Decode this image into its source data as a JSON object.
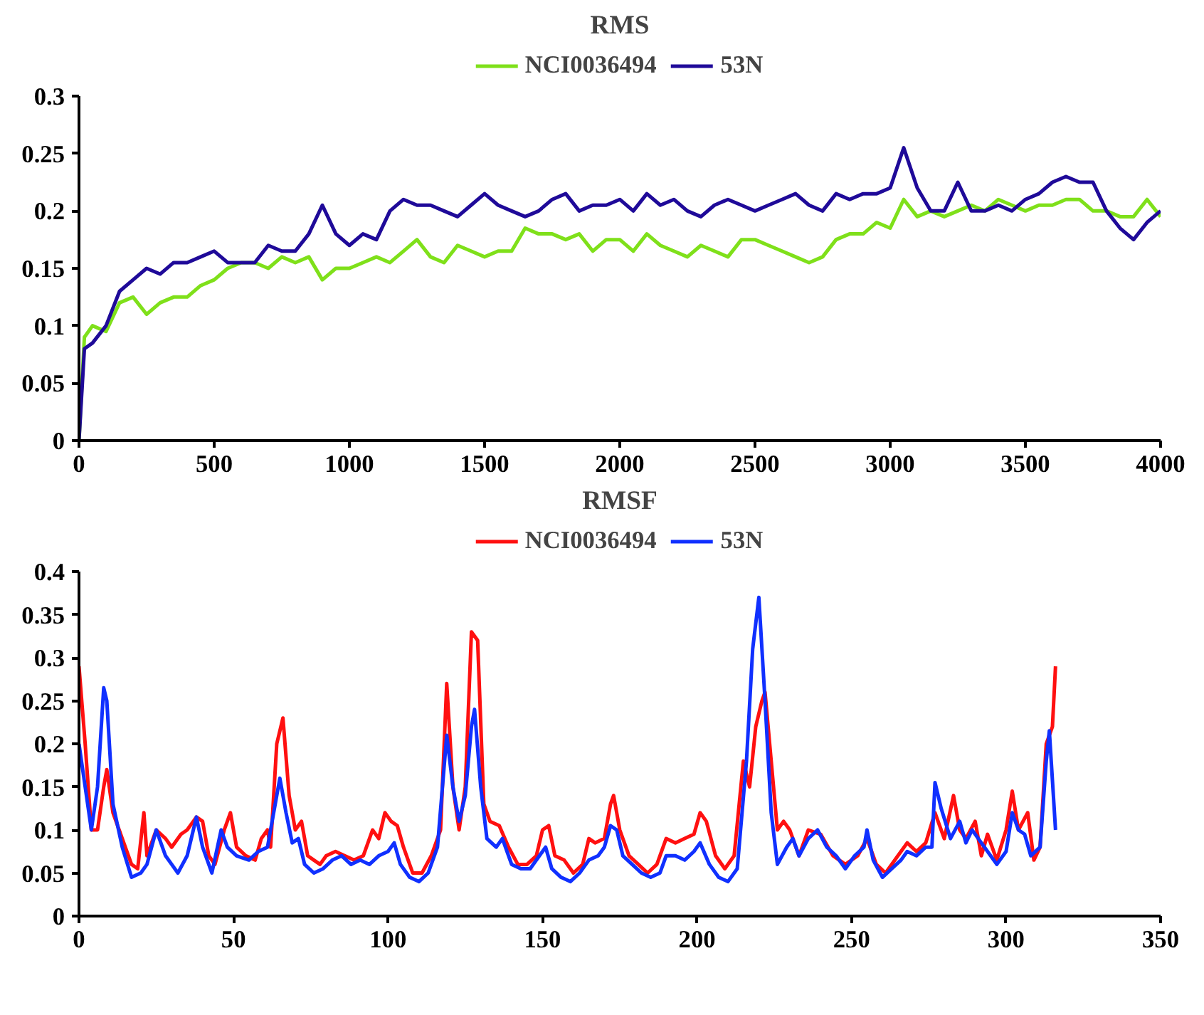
{
  "chart_data": [
    {
      "type": "line",
      "title": "RMS",
      "legend": "top",
      "grid": false,
      "line_style": "solid",
      "marker": "none",
      "xlim": [
        0,
        4000
      ],
      "xticks": [
        0,
        500,
        1000,
        1500,
        2000,
        2500,
        3000,
        3500,
        4000
      ],
      "ylim": [
        0,
        0.3
      ],
      "yticks": [
        0,
        0.05,
        0.1,
        0.15,
        0.2,
        0.25,
        0.3
      ],
      "series": [
        {
          "name": "NCI0036494",
          "color": "#7fe01a",
          "x": [
            0,
            20,
            50,
            100,
            150,
            200,
            250,
            300,
            350,
            400,
            450,
            500,
            550,
            600,
            650,
            700,
            750,
            800,
            850,
            900,
            950,
            1000,
            1050,
            1100,
            1150,
            1200,
            1250,
            1300,
            1350,
            1400,
            1450,
            1500,
            1550,
            1600,
            1650,
            1700,
            1750,
            1800,
            1850,
            1900,
            1950,
            2000,
            2050,
            2100,
            2150,
            2200,
            2250,
            2300,
            2350,
            2400,
            2450,
            2500,
            2550,
            2600,
            2650,
            2700,
            2750,
            2800,
            2850,
            2900,
            2950,
            3000,
            3050,
            3100,
            3150,
            3200,
            3250,
            3300,
            3350,
            3400,
            3450,
            3500,
            3550,
            3600,
            3650,
            3700,
            3750,
            3800,
            3850,
            3900,
            3950,
            4000
          ],
          "values": [
            0,
            0.09,
            0.1,
            0.095,
            0.12,
            0.125,
            0.11,
            0.12,
            0.125,
            0.125,
            0.135,
            0.14,
            0.15,
            0.155,
            0.155,
            0.15,
            0.16,
            0.155,
            0.16,
            0.14,
            0.15,
            0.15,
            0.155,
            0.16,
            0.155,
            0.165,
            0.175,
            0.16,
            0.155,
            0.17,
            0.165,
            0.16,
            0.165,
            0.165,
            0.185,
            0.18,
            0.18,
            0.175,
            0.18,
            0.165,
            0.175,
            0.175,
            0.165,
            0.18,
            0.17,
            0.165,
            0.16,
            0.17,
            0.165,
            0.16,
            0.175,
            0.175,
            0.17,
            0.165,
            0.16,
            0.155,
            0.16,
            0.175,
            0.18,
            0.18,
            0.19,
            0.185,
            0.21,
            0.195,
            0.2,
            0.195,
            0.2,
            0.205,
            0.2,
            0.21,
            0.205,
            0.2,
            0.205,
            0.205,
            0.21,
            0.21,
            0.2,
            0.2,
            0.195,
            0.195,
            0.21,
            0.195
          ]
        },
        {
          "name": "53N",
          "color": "#1f0a99",
          "x": [
            0,
            20,
            50,
            100,
            150,
            200,
            250,
            300,
            350,
            400,
            450,
            500,
            550,
            600,
            650,
            700,
            750,
            800,
            850,
            900,
            950,
            1000,
            1050,
            1100,
            1150,
            1200,
            1250,
            1300,
            1350,
            1400,
            1450,
            1500,
            1550,
            1600,
            1650,
            1700,
            1750,
            1800,
            1850,
            1900,
            1950,
            2000,
            2050,
            2100,
            2150,
            2200,
            2250,
            2300,
            2350,
            2400,
            2450,
            2500,
            2550,
            2600,
            2650,
            2700,
            2750,
            2800,
            2850,
            2900,
            2950,
            3000,
            3050,
            3100,
            3150,
            3200,
            3250,
            3300,
            3350,
            3400,
            3450,
            3500,
            3550,
            3600,
            3650,
            3700,
            3750,
            3800,
            3850,
            3900,
            3950,
            4000
          ],
          "values": [
            0,
            0.08,
            0.085,
            0.1,
            0.13,
            0.14,
            0.15,
            0.145,
            0.155,
            0.155,
            0.16,
            0.165,
            0.155,
            0.155,
            0.155,
            0.17,
            0.165,
            0.165,
            0.18,
            0.205,
            0.18,
            0.17,
            0.18,
            0.175,
            0.2,
            0.21,
            0.205,
            0.205,
            0.2,
            0.195,
            0.205,
            0.215,
            0.205,
            0.2,
            0.195,
            0.2,
            0.21,
            0.215,
            0.2,
            0.205,
            0.205,
            0.21,
            0.2,
            0.215,
            0.205,
            0.21,
            0.2,
            0.195,
            0.205,
            0.21,
            0.205,
            0.2,
            0.205,
            0.21,
            0.215,
            0.205,
            0.2,
            0.215,
            0.21,
            0.215,
            0.215,
            0.22,
            0.255,
            0.22,
            0.2,
            0.2,
            0.225,
            0.2,
            0.2,
            0.205,
            0.2,
            0.21,
            0.215,
            0.225,
            0.23,
            0.225,
            0.225,
            0.2,
            0.185,
            0.175,
            0.19,
            0.2
          ]
        }
      ]
    },
    {
      "type": "line",
      "title": "RMSF",
      "legend": "top",
      "grid": false,
      "line_style": "solid",
      "marker": "none",
      "xlim": [
        0,
        350
      ],
      "xticks": [
        0,
        50,
        100,
        150,
        200,
        250,
        300,
        350
      ],
      "ylim": [
        0,
        0.4
      ],
      "yticks": [
        0,
        0.05,
        0.1,
        0.15,
        0.2,
        0.25,
        0.3,
        0.35,
        0.4
      ],
      "series": [
        {
          "name": "NCI0036494",
          "color": "#ff1010",
          "x": [
            0,
            2,
            4,
            6,
            8,
            9,
            11,
            14,
            17,
            19,
            21,
            22,
            25,
            28,
            30,
            33,
            35,
            38,
            40,
            42,
            44,
            47,
            49,
            51,
            54,
            57,
            59,
            61,
            62,
            64,
            66,
            68,
            70,
            72,
            74,
            76,
            78,
            80,
            83,
            86,
            89,
            92,
            95,
            97,
            99,
            101,
            103,
            105,
            108,
            111,
            114,
            117,
            119,
            121,
            123,
            125,
            127,
            129,
            131,
            133,
            136,
            139,
            142,
            145,
            148,
            150,
            152,
            154,
            157,
            160,
            163,
            165,
            167,
            170,
            172,
            173,
            175,
            178,
            181,
            184,
            187,
            190,
            193,
            196,
            199,
            201,
            203,
            206,
            209,
            212,
            215,
            217,
            219,
            221,
            222,
            224,
            226,
            228,
            230,
            233,
            236,
            240,
            244,
            248,
            252,
            255,
            258,
            261,
            265,
            268,
            271,
            274,
            277,
            280,
            283,
            285,
            287,
            290,
            292,
            294,
            297,
            300,
            302,
            304,
            307,
            309,
            311,
            313,
            315,
            316
          ],
          "values": [
            0.29,
            0.2,
            0.1,
            0.1,
            0.15,
            0.17,
            0.12,
            0.09,
            0.06,
            0.055,
            0.12,
            0.07,
            0.1,
            0.09,
            0.08,
            0.095,
            0.1,
            0.115,
            0.11,
            0.07,
            0.06,
            0.1,
            0.12,
            0.08,
            0.07,
            0.065,
            0.09,
            0.1,
            0.08,
            0.2,
            0.23,
            0.14,
            0.1,
            0.11,
            0.07,
            0.065,
            0.06,
            0.07,
            0.075,
            0.07,
            0.065,
            0.07,
            0.1,
            0.09,
            0.12,
            0.11,
            0.105,
            0.08,
            0.05,
            0.05,
            0.07,
            0.1,
            0.27,
            0.15,
            0.1,
            0.15,
            0.33,
            0.32,
            0.13,
            0.11,
            0.105,
            0.08,
            0.06,
            0.06,
            0.07,
            0.1,
            0.105,
            0.07,
            0.065,
            0.05,
            0.06,
            0.09,
            0.085,
            0.09,
            0.13,
            0.14,
            0.1,
            0.07,
            0.06,
            0.05,
            0.06,
            0.09,
            0.085,
            0.09,
            0.095,
            0.12,
            0.11,
            0.07,
            0.055,
            0.07,
            0.18,
            0.15,
            0.22,
            0.25,
            0.26,
            0.18,
            0.1,
            0.11,
            0.1,
            0.07,
            0.1,
            0.095,
            0.07,
            0.06,
            0.07,
            0.09,
            0.06,
            0.05,
            0.07,
            0.085,
            0.075,
            0.085,
            0.12,
            0.09,
            0.14,
            0.1,
            0.09,
            0.11,
            0.07,
            0.095,
            0.065,
            0.1,
            0.145,
            0.1,
            0.12,
            0.065,
            0.08,
            0.2,
            0.22,
            0.29
          ]
        },
        {
          "name": "53N",
          "color": "#1030ff",
          "x": [
            0,
            2,
            4,
            6,
            8,
            9,
            11,
            14,
            17,
            20,
            22,
            25,
            28,
            30,
            32,
            35,
            38,
            40,
            43,
            46,
            48,
            51,
            55,
            58,
            61,
            63,
            65,
            67,
            69,
            71,
            73,
            76,
            79,
            82,
            85,
            88,
            91,
            94,
            97,
            100,
            102,
            104,
            107,
            110,
            113,
            116,
            119,
            121,
            123,
            125,
            127,
            128,
            130,
            132,
            135,
            137,
            140,
            143,
            146,
            149,
            151,
            153,
            156,
            159,
            162,
            165,
            168,
            170,
            172,
            174,
            176,
            179,
            182,
            185,
            188,
            190,
            193,
            196,
            199,
            201,
            204,
            207,
            210,
            213,
            216,
            218,
            220,
            222,
            224,
            226,
            229,
            231,
            233,
            236,
            239,
            242,
            245,
            248,
            251,
            254,
            255,
            257,
            260,
            263,
            266,
            268,
            271,
            274,
            276,
            277,
            279,
            282,
            285,
            287,
            289,
            292,
            295,
            297,
            300,
            302,
            304,
            306,
            308,
            311,
            313,
            314,
            316
          ],
          "values": [
            0.2,
            0.15,
            0.1,
            0.15,
            0.265,
            0.25,
            0.13,
            0.08,
            0.045,
            0.05,
            0.06,
            0.1,
            0.07,
            0.06,
            0.05,
            0.07,
            0.115,
            0.08,
            0.05,
            0.1,
            0.08,
            0.07,
            0.065,
            0.075,
            0.08,
            0.12,
            0.16,
            0.12,
            0.085,
            0.09,
            0.06,
            0.05,
            0.055,
            0.065,
            0.07,
            0.06,
            0.065,
            0.06,
            0.07,
            0.075,
            0.085,
            0.06,
            0.045,
            0.04,
            0.05,
            0.08,
            0.21,
            0.15,
            0.11,
            0.14,
            0.22,
            0.24,
            0.15,
            0.09,
            0.08,
            0.09,
            0.06,
            0.055,
            0.055,
            0.07,
            0.08,
            0.055,
            0.045,
            0.04,
            0.05,
            0.065,
            0.07,
            0.08,
            0.105,
            0.1,
            0.07,
            0.06,
            0.05,
            0.045,
            0.05,
            0.07,
            0.07,
            0.065,
            0.075,
            0.085,
            0.06,
            0.045,
            0.04,
            0.055,
            0.18,
            0.31,
            0.37,
            0.25,
            0.12,
            0.06,
            0.08,
            0.09,
            0.07,
            0.09,
            0.1,
            0.08,
            0.07,
            0.055,
            0.07,
            0.08,
            0.1,
            0.065,
            0.045,
            0.055,
            0.065,
            0.075,
            0.07,
            0.08,
            0.08,
            0.155,
            0.125,
            0.09,
            0.11,
            0.085,
            0.1,
            0.085,
            0.07,
            0.06,
            0.075,
            0.12,
            0.1,
            0.095,
            0.07,
            0.08,
            0.18,
            0.215,
            0.1
          ]
        }
      ]
    }
  ]
}
